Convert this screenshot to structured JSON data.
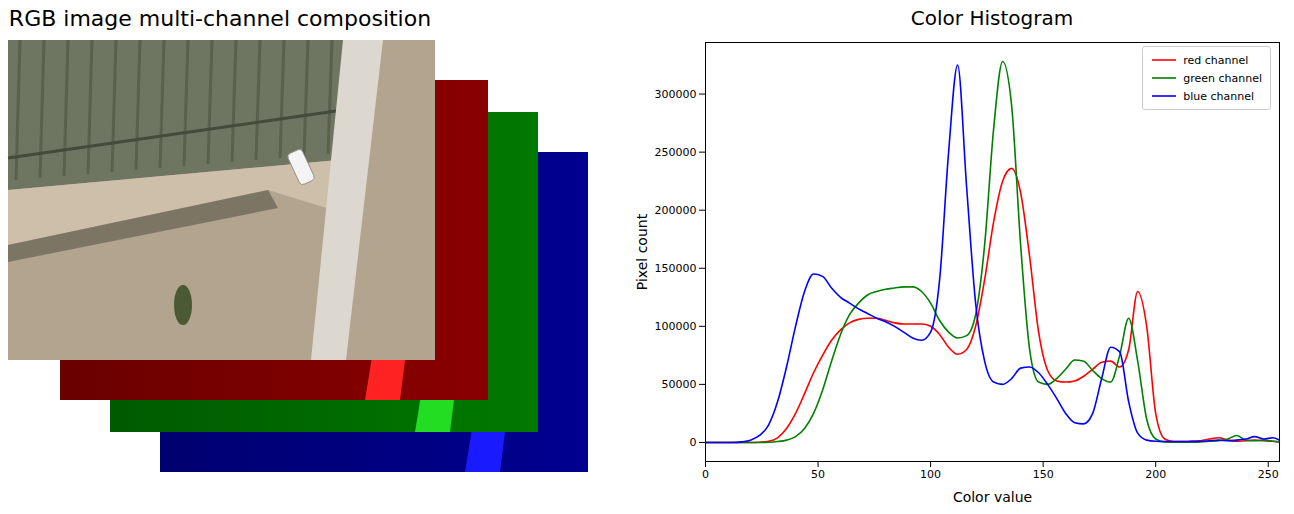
{
  "image_panel": {
    "title": "RGB image multi-channel composition"
  },
  "chart_data": {
    "type": "line",
    "title": "Color Histogram",
    "xlabel": "Color value",
    "ylabel": "Pixel count",
    "x": [
      0,
      4,
      8,
      12,
      16,
      20,
      24,
      28,
      32,
      36,
      40,
      44,
      48,
      52,
      56,
      60,
      64,
      68,
      72,
      76,
      80,
      84,
      88,
      92,
      96,
      100,
      104,
      108,
      112,
      116,
      120,
      124,
      128,
      132,
      136,
      140,
      144,
      148,
      152,
      156,
      160,
      164,
      168,
      172,
      176,
      180,
      184,
      188,
      192,
      196,
      200,
      204,
      208,
      212,
      216,
      220,
      224,
      228,
      232,
      236,
      240,
      244,
      248,
      252,
      255
    ],
    "series": [
      {
        "name": "red channel",
        "color": "#ff0000",
        "values": [
          0,
          0,
          0,
          0,
          0,
          0,
          200,
          1000,
          4000,
          12000,
          25000,
          42000,
          60000,
          75000,
          88000,
          97000,
          103000,
          106000,
          107000,
          107000,
          105000,
          103000,
          102000,
          102000,
          102000,
          100000,
          93000,
          82000,
          76000,
          80000,
          100000,
          140000,
          190000,
          225000,
          236000,
          215000,
          160000,
          95000,
          62000,
          53000,
          52000,
          53000,
          57000,
          63000,
          69000,
          70000,
          65000,
          80000,
          130000,
          100000,
          25000,
          3000,
          800,
          800,
          1000,
          1500,
          3000,
          4000,
          2000,
          1000,
          1500,
          2000,
          1500,
          1000,
          500
        ]
      },
      {
        "name": "green channel",
        "color": "#008000",
        "values": [
          0,
          0,
          0,
          0,
          0,
          0,
          0,
          200,
          800,
          2000,
          5000,
          12000,
          25000,
          45000,
          70000,
          93000,
          110000,
          120000,
          127000,
          130000,
          132000,
          133000,
          134000,
          134000,
          130000,
          120000,
          105000,
          95000,
          90000,
          92000,
          110000,
          170000,
          270000,
          328000,
          290000,
          170000,
          80000,
          52000,
          50000,
          55000,
          63000,
          71000,
          70000,
          62000,
          55000,
          52000,
          75000,
          107000,
          70000,
          20000,
          3000,
          500,
          300,
          300,
          300,
          500,
          1000,
          1500,
          3000,
          6000,
          2000,
          1500,
          2000,
          1000,
          500
        ]
      },
      {
        "name": "blue channel",
        "color": "#0000ff",
        "values": [
          0,
          0,
          0,
          0,
          500,
          2000,
          6000,
          15000,
          35000,
          65000,
          100000,
          130000,
          145000,
          143000,
          133000,
          125000,
          120000,
          115000,
          111000,
          107000,
          104000,
          100000,
          95000,
          90000,
          88000,
          95000,
          140000,
          250000,
          325000,
          220000,
          120000,
          70000,
          52000,
          50000,
          55000,
          64000,
          65000,
          60000,
          50000,
          38000,
          25000,
          17000,
          16000,
          25000,
          55000,
          82000,
          78000,
          35000,
          8000,
          2000,
          1000,
          800,
          800,
          800,
          900,
          1000,
          1500,
          2000,
          1500,
          2000,
          3000,
          5000,
          3000,
          4000,
          2000
        ]
      }
    ],
    "xlim": [
      0,
      255
    ],
    "xticks": [
      0,
      50,
      100,
      150,
      200,
      250
    ],
    "ylim": [
      -16400,
      344400
    ],
    "yticks": [
      0,
      50000,
      100000,
      150000,
      200000,
      250000,
      300000
    ],
    "grid": false,
    "legend": "upper right"
  }
}
